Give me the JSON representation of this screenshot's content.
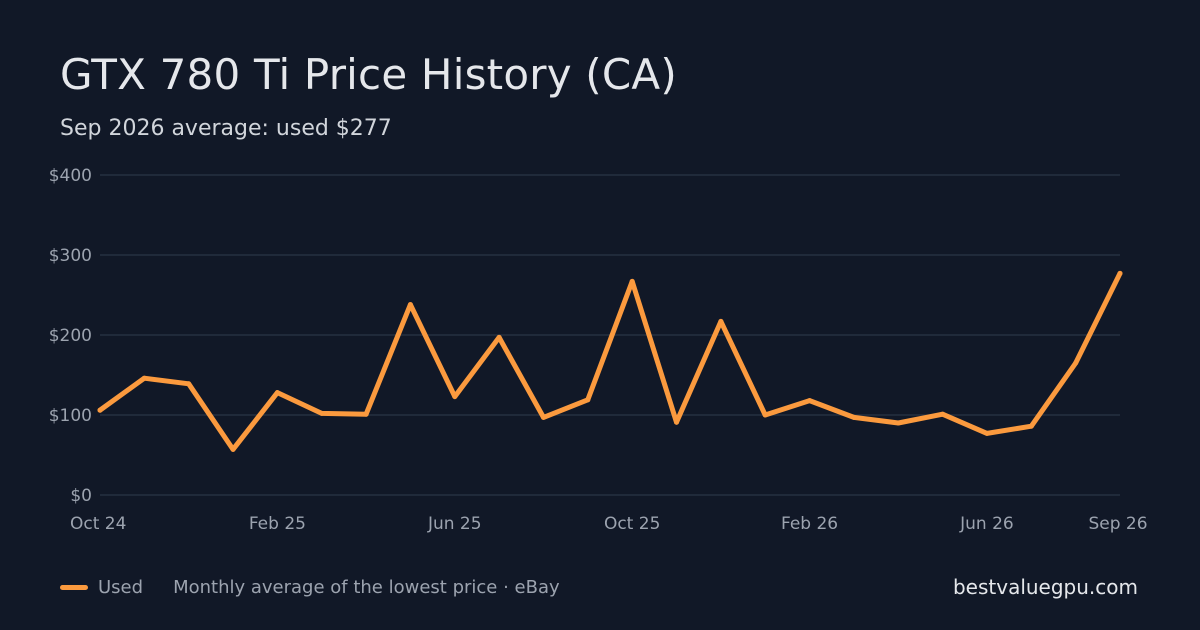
{
  "title": "GTX 780 Ti Price History (CA)",
  "subtitle": "Sep 2026 average: used $277",
  "legend": {
    "label": "Used",
    "color": "#fb9a3e"
  },
  "source_note": "Monthly average of the lowest price · eBay",
  "site": "bestvaluegpu.com",
  "colors": {
    "background": "#111827",
    "grid": "#263041",
    "tick_text": "#9ca3af",
    "line": "#fb9a3e"
  },
  "chart_data": {
    "type": "line",
    "title": "GTX 780 Ti Price History (CA)",
    "subtitle": "Sep 2026 average: used $277",
    "xlabel": "",
    "ylabel": "",
    "x": [
      "Oct 24",
      "Nov 24",
      "Dec 24",
      "Jan 25",
      "Feb 25",
      "Mar 25",
      "Apr 25",
      "May 25",
      "Jun 25",
      "Jul 25",
      "Aug 25",
      "Sep 25",
      "Oct 25",
      "Nov 25",
      "Dec 25",
      "Jan 26",
      "Feb 26",
      "Mar 26",
      "Apr 26",
      "May 26",
      "Jun 26",
      "Jul 26",
      "Aug 26",
      "Sep 26"
    ],
    "x_tick_labels": [
      "Oct 24",
      "Feb 25",
      "Jun 25",
      "Oct 25",
      "Feb 26",
      "Jun 26",
      "Sep 26"
    ],
    "x_tick_indices": [
      0,
      4,
      8,
      12,
      16,
      20,
      23
    ],
    "ylim": [
      0,
      400
    ],
    "y_ticks": [
      0,
      100,
      200,
      300,
      400
    ],
    "y_tick_labels": [
      "$0",
      "$100",
      "$200",
      "$300",
      "$400"
    ],
    "grid": true,
    "legend_position": "bottom-left",
    "series": [
      {
        "name": "Used",
        "values": [
          106,
          146,
          139,
          57,
          128,
          102,
          101,
          238,
          123,
          197,
          97,
          119,
          267,
          91,
          217,
          100,
          118,
          97,
          90,
          101,
          77,
          86,
          165,
          277
        ]
      }
    ]
  }
}
